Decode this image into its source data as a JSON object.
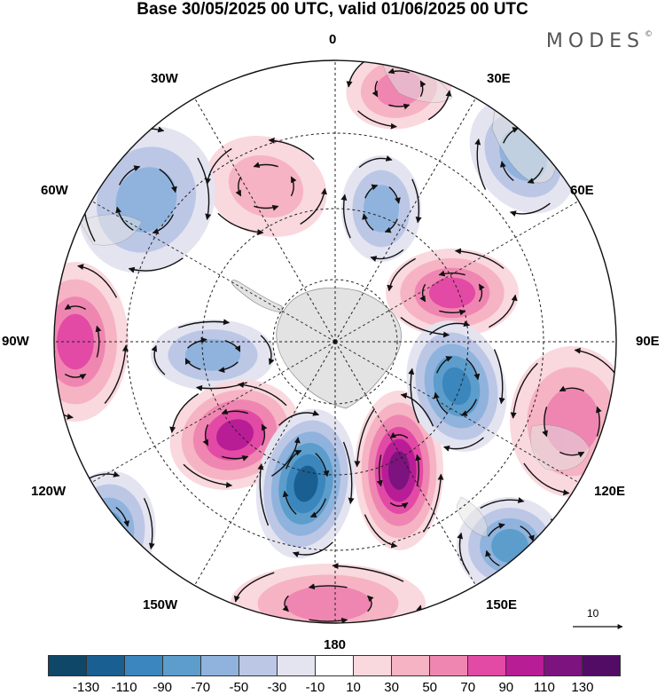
{
  "title": "Base 30/05/2025 00 UTC, valid 01/06/2025 00 UTC",
  "logo": "MODES",
  "logo_mark": "©",
  "map_labels": {
    "lon_0": "0",
    "lon_30e": "30E",
    "lon_60e": "60E",
    "lon_90e": "90E",
    "lon_120e": "120E",
    "lon_150e": "150E",
    "lon_180": "180",
    "lon_150w": "150W",
    "lon_120w": "120W",
    "lon_90w": "90W",
    "lon_60w": "60W",
    "lon_30w": "30W"
  },
  "vector_scale_label": "10",
  "colorbar": {
    "ticks": [
      "-130",
      "-110",
      "-90",
      "-70",
      "-50",
      "-30",
      "-10",
      "10",
      "30",
      "50",
      "70",
      "90",
      "110",
      "130"
    ],
    "colors": [
      "#0e4768",
      "#1a5f91",
      "#3a86bd",
      "#5c9dcc",
      "#8fb3dd",
      "#bcc7e6",
      "#e4e4f1",
      "#ffffff",
      "#f9d8de",
      "#f6b3c3",
      "#ef86b1",
      "#e24aa5",
      "#b81d96",
      "#7c137f",
      "#520c66"
    ]
  },
  "anomalies": [
    {
      "sign": "+",
      "level": "+50",
      "name": "anomaly-lobe-0"
    },
    {
      "sign": "-",
      "level": "-50",
      "name": "anomaly-lobe-30e"
    },
    {
      "sign": "+",
      "level": "+30",
      "name": "anomaly-lobe-30w"
    },
    {
      "sign": "-",
      "level": "-50",
      "name": "anomaly-lobe-60w"
    },
    {
      "sign": "-",
      "level": "-50",
      "name": "anomaly-lobe-15e"
    },
    {
      "sign": "+",
      "level": "+70",
      "name": "anomaly-lobe-70e"
    },
    {
      "sign": "+",
      "level": "+70",
      "name": "anomaly-lobe-90w"
    },
    {
      "sign": "-",
      "level": "-50",
      "name": "anomaly-lobe-105w"
    },
    {
      "sign": "+",
      "level": "+90",
      "name": "anomaly-lobe-150w"
    },
    {
      "sign": "-",
      "level": "-110",
      "name": "anomaly-lobe-175w"
    },
    {
      "sign": "+",
      "level": "+110",
      "name": "anomaly-lobe-165e"
    },
    {
      "sign": "-",
      "level": "-90",
      "name": "anomaly-lobe-110e"
    },
    {
      "sign": "+",
      "level": "+50",
      "name": "anomaly-lobe-105e"
    },
    {
      "sign": "-",
      "level": "-70",
      "name": "anomaly-lobe-140e"
    },
    {
      "sign": "-",
      "level": "-70",
      "name": "anomaly-lobe-125w"
    },
    {
      "sign": "+",
      "level": "+50",
      "name": "anomaly-lobe-180"
    }
  ]
}
